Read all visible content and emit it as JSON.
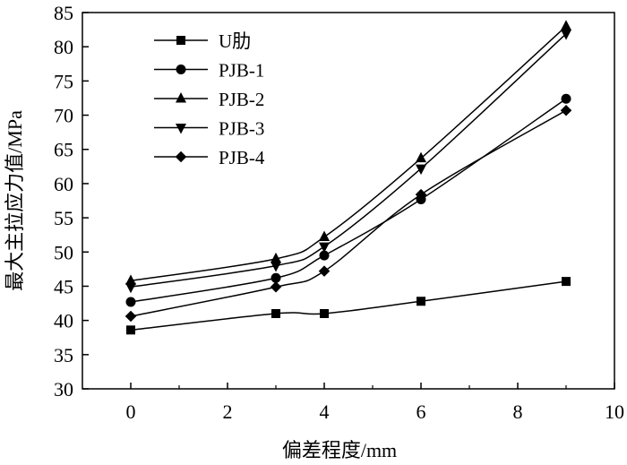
{
  "chart_data": {
    "type": "line",
    "title": "",
    "xlabel": "偏差程度/mm",
    "ylabel": "最大主拉应力值/MPa",
    "xlim": [
      -1,
      10
    ],
    "ylim": [
      30,
      85
    ],
    "x_ticks": [
      0,
      2,
      4,
      6,
      8,
      10
    ],
    "y_ticks": [
      30,
      35,
      40,
      45,
      50,
      55,
      60,
      65,
      70,
      75,
      80,
      85
    ],
    "grid": false,
    "legend_position": "top-left",
    "series": [
      {
        "name": "U肋",
        "marker": "square",
        "x": [
          0,
          3,
          4,
          6,
          9
        ],
        "values": [
          38.6,
          41.0,
          41.0,
          42.8,
          45.7
        ]
      },
      {
        "name": "PJB-1",
        "marker": "circle",
        "x": [
          0,
          3,
          4,
          6,
          9
        ],
        "values": [
          42.7,
          46.2,
          49.5,
          57.7,
          72.4
        ]
      },
      {
        "name": "PJB-2",
        "marker": "triangle-up",
        "x": [
          0,
          3,
          4,
          6,
          9
        ],
        "values": [
          45.8,
          49.0,
          52.2,
          63.7,
          83.0
        ]
      },
      {
        "name": "PJB-3",
        "marker": "triangle-down",
        "x": [
          0,
          3,
          4,
          6,
          9
        ],
        "values": [
          44.9,
          48.0,
          50.8,
          62.2,
          81.9
        ]
      },
      {
        "name": "PJB-4",
        "marker": "diamond",
        "x": [
          0,
          3,
          4,
          6,
          9
        ],
        "values": [
          40.6,
          44.9,
          47.2,
          58.4,
          70.7
        ]
      }
    ]
  }
}
